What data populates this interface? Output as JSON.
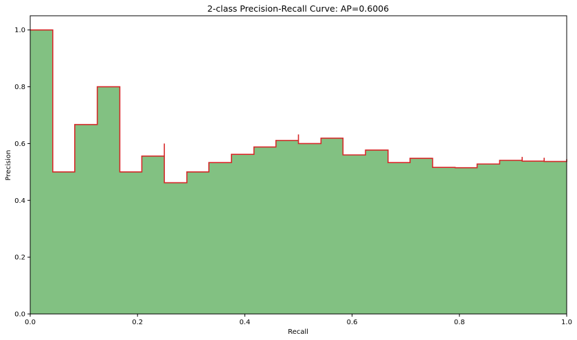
{
  "chart_data": {
    "type": "area",
    "title": "2-class Precision-Recall Curve: AP=0.6006",
    "xlabel": "Recall",
    "ylabel": "Precision",
    "xlim": [
      0.0,
      1.0
    ],
    "ylim": [
      0.0,
      1.05
    ],
    "xticks": [
      "0.0",
      "0.2",
      "0.4",
      "0.6",
      "0.8",
      "1.0"
    ],
    "yticks": [
      "0.0",
      "0.2",
      "0.4",
      "0.6",
      "0.8",
      "1.0"
    ],
    "grid": false,
    "fill_color": "#82c182",
    "line_color": "#d62728",
    "series": [
      {
        "recall": [
          0.0,
          0.042,
          0.042,
          0.083,
          0.125,
          0.125,
          0.167,
          0.167,
          0.208,
          0.25,
          0.25,
          0.292,
          0.333,
          0.375,
          0.417,
          0.458,
          0.5,
          0.5,
          0.542,
          0.583,
          0.583,
          0.625,
          0.667,
          0.667,
          0.708,
          0.75,
          0.792,
          0.833,
          0.875,
          0.917,
          0.917,
          0.958,
          0.958,
          1.0
        ],
        "precision": [
          1.0,
          1.0,
          0.5,
          0.667,
          0.75,
          0.8,
          0.8,
          0.5,
          0.556,
          0.6,
          0.462,
          0.5,
          0.533,
          0.562,
          0.588,
          0.611,
          0.632,
          0.6,
          0.619,
          0.583,
          0.56,
          0.577,
          0.552,
          0.533,
          0.548,
          0.516,
          0.515,
          0.528,
          0.541,
          0.553,
          0.538,
          0.55,
          0.537,
          0.545
        ]
      }
    ]
  }
}
